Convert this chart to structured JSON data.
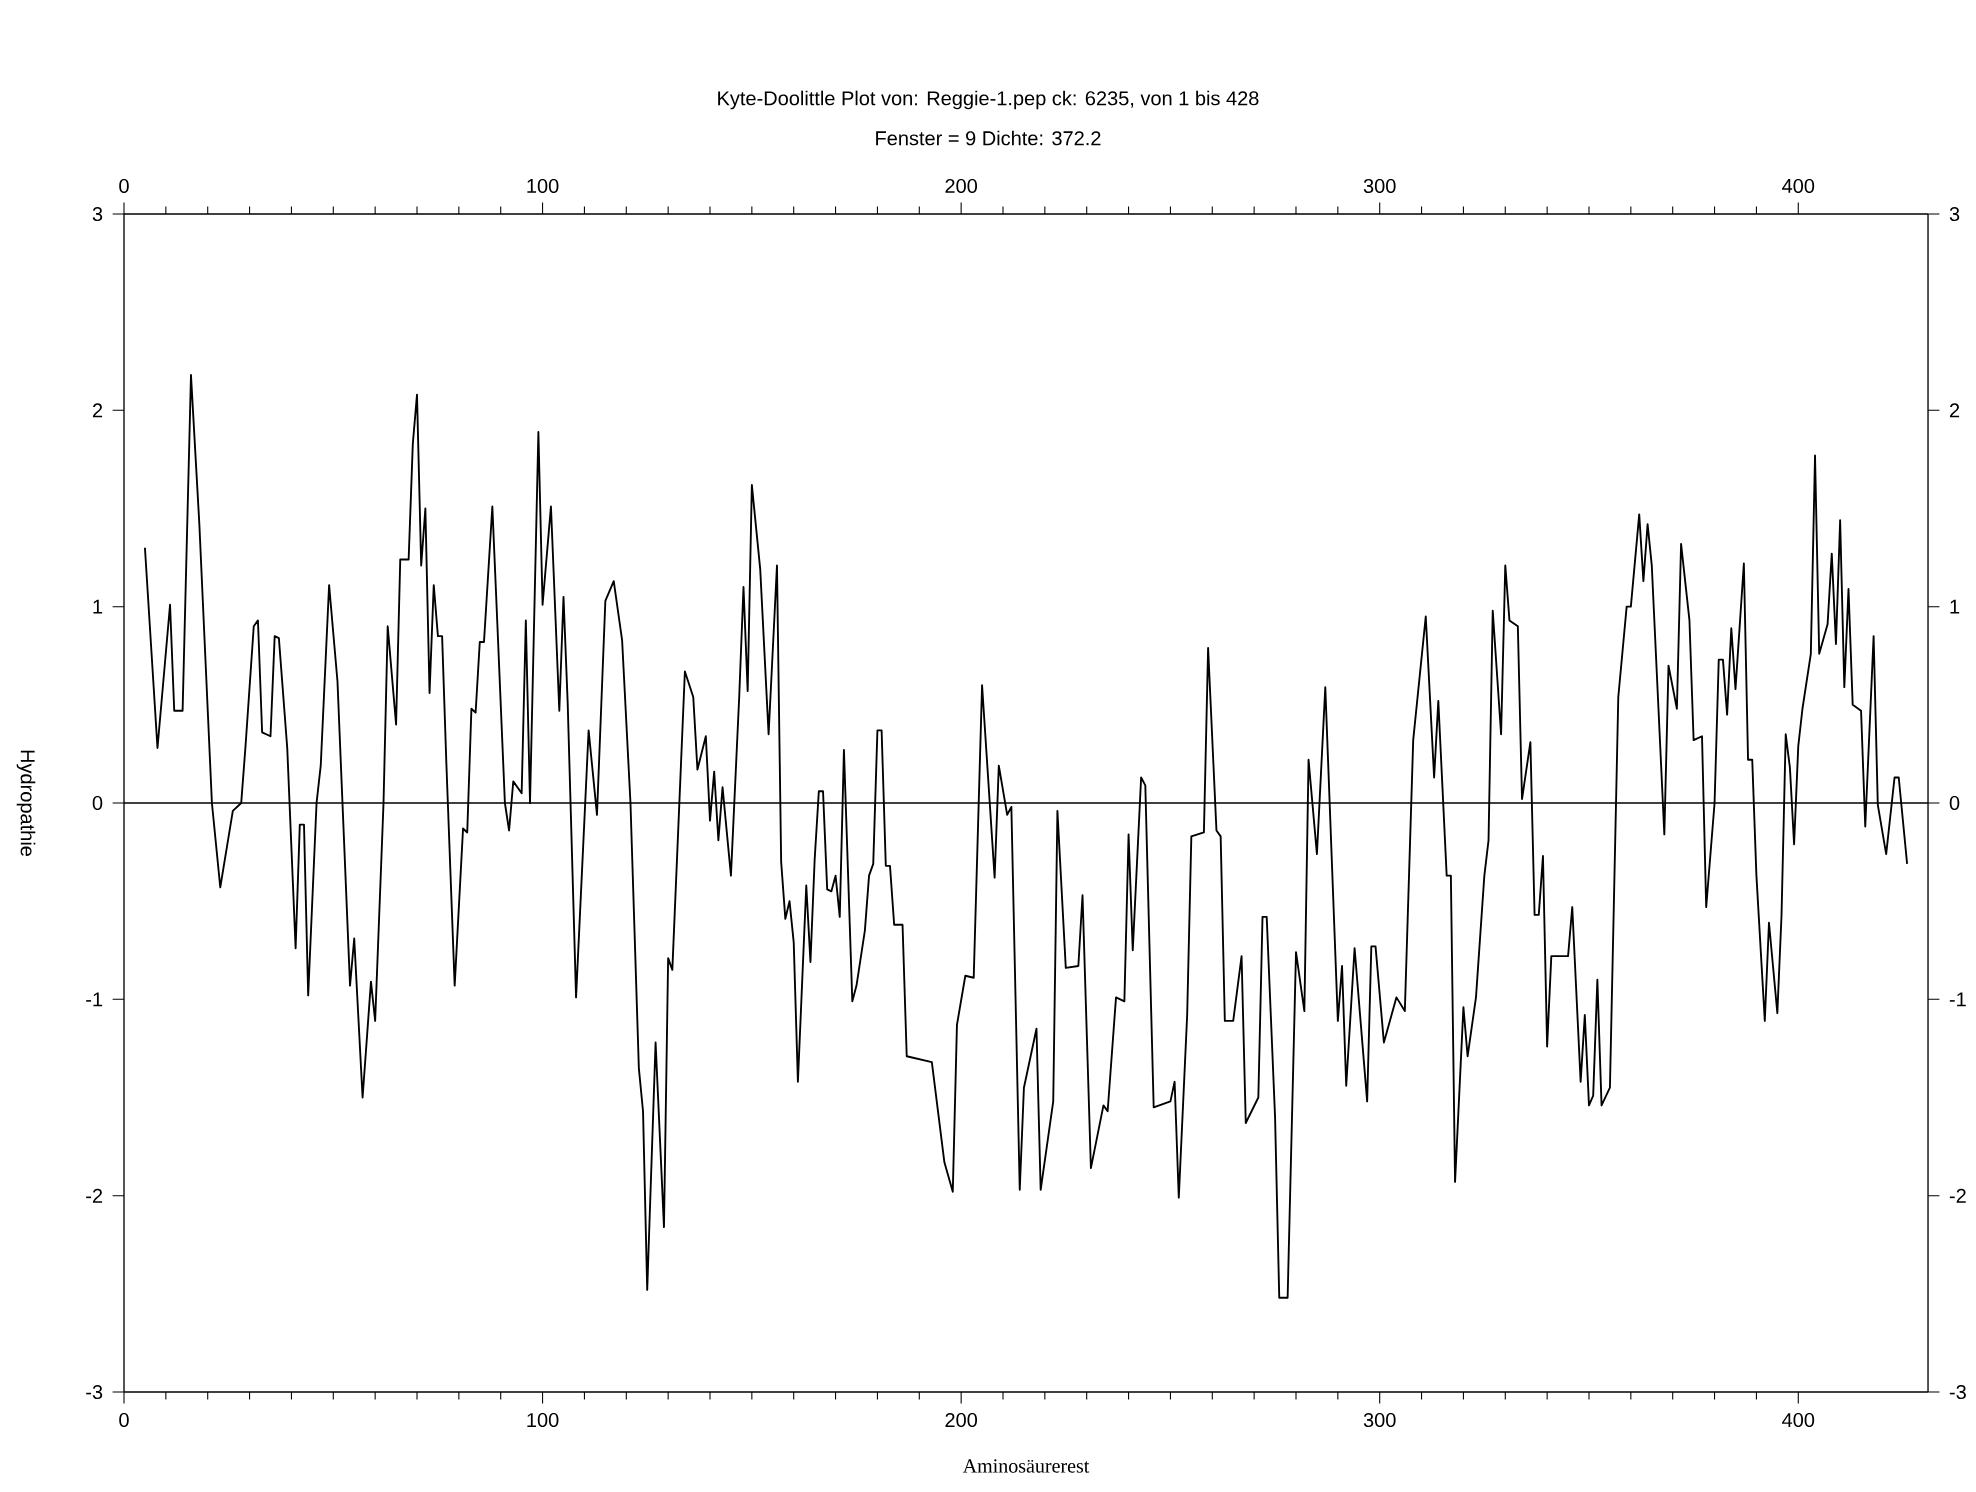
{
  "chart_data": {
    "type": "line",
    "title": "Kyte-Doolittle Plot von: Reggie-1.pep ck: 6235, von 1 bis 428",
    "subtitle": "Fenster = 9    Dichte: 372.2",
    "xlabel": "Aminosäurerest",
    "ylabel": "Hydropathie",
    "xlim": [
      0,
      431
    ],
    "xticks": [
      0,
      100,
      200,
      300,
      400
    ],
    "x2lim": [
      0,
      431
    ],
    "x2ticks": [
      0,
      100,
      200,
      300,
      400
    ],
    "ylim": [
      -3,
      3
    ],
    "yticks": [
      -3,
      -2,
      -1,
      0,
      1,
      2,
      3
    ],
    "y2lim": [
      -3,
      3
    ],
    "y2ticks": [
      -3,
      -2,
      -1,
      0,
      1,
      2,
      3
    ],
    "ref_lines": [
      {
        "axis": "y",
        "value": 0,
        "color": "#000000"
      }
    ],
    "series": [
      {
        "color": "#000000",
        "x": [
          5,
          8,
          11,
          12,
          14,
          16,
          18,
          21,
          23,
          26,
          28,
          29,
          31,
          32,
          33,
          35,
          36,
          37,
          39,
          41,
          42,
          43,
          44,
          46,
          47,
          49,
          51,
          52,
          54,
          55,
          57,
          59,
          60,
          62,
          63,
          65,
          66,
          68,
          69,
          70,
          71,
          72,
          73,
          74,
          75,
          76,
          77,
          79,
          81,
          82,
          83,
          84,
          85,
          86,
          88,
          89,
          91,
          92,
          93,
          95,
          96,
          97,
          99,
          100,
          102,
          104,
          105,
          106,
          108,
          111,
          113,
          115,
          117,
          119,
          121,
          123,
          124,
          125,
          127,
          129,
          130,
          131,
          134,
          136,
          137,
          139,
          140,
          141,
          142,
          143,
          145,
          147,
          148,
          149,
          150,
          152,
          154,
          156,
          157,
          158,
          159,
          160,
          161,
          163,
          164,
          165,
          166,
          167,
          168,
          169,
          170,
          171,
          172,
          174,
          175,
          177,
          178,
          179,
          180,
          181,
          182,
          183,
          184,
          186,
          187,
          193,
          196,
          198,
          199,
          201,
          203,
          205,
          208,
          209,
          211,
          212,
          214,
          215,
          218,
          219,
          222,
          223,
          225,
          228,
          229,
          231,
          234,
          235,
          237,
          239,
          240,
          241,
          243,
          244,
          246,
          250,
          251,
          252,
          254,
          255,
          258,
          259,
          261,
          262,
          263,
          265,
          267,
          268,
          271,
          272,
          273,
          275,
          276,
          278,
          280,
          282,
          283,
          285,
          287,
          290,
          291,
          292,
          294,
          297,
          298,
          299,
          301,
          304,
          306,
          308,
          311,
          313,
          314,
          316,
          317,
          318,
          320,
          321,
          323,
          325,
          326,
          327,
          329,
          330,
          331,
          333,
          334,
          336,
          337,
          338,
          339,
          340,
          341,
          345,
          346,
          348,
          349,
          350,
          351,
          352,
          353,
          355,
          357,
          359,
          360,
          362,
          363,
          364,
          365,
          368,
          369,
          371,
          372,
          374,
          375,
          377,
          378,
          380,
          381,
          382,
          383,
          384,
          385,
          387,
          388,
          389,
          390,
          392,
          393,
          395,
          396,
          397,
          398,
          399,
          400,
          401,
          403,
          404,
          405,
          407,
          408,
          409,
          410,
          411,
          412,
          413,
          415,
          416,
          418,
          419,
          421,
          423,
          424,
          426
        ],
        "values": [
          1.3,
          0.28,
          1.01,
          0.47,
          0.47,
          2.18,
          1.42,
          0.0,
          -0.43,
          -0.04,
          0.0,
          0.28,
          0.9,
          0.93,
          0.36,
          0.34,
          0.85,
          0.84,
          0.28,
          -0.74,
          -0.11,
          -0.11,
          -0.98,
          0.0,
          0.19,
          1.11,
          0.62,
          0.1,
          -0.93,
          -0.69,
          -1.5,
          -0.91,
          -1.11,
          0.0,
          0.9,
          0.4,
          1.24,
          1.24,
          1.83,
          2.08,
          1.21,
          1.5,
          0.56,
          1.11,
          0.85,
          0.85,
          0.21,
          -0.93,
          -0.13,
          -0.15,
          0.48,
          0.46,
          0.82,
          0.82,
          1.51,
          1.01,
          0.0,
          -0.14,
          0.11,
          0.05,
          0.93,
          0.0,
          1.89,
          1.01,
          1.51,
          0.47,
          1.05,
          0.51,
          -0.99,
          0.37,
          -0.06,
          1.03,
          1.13,
          0.83,
          0.0,
          -1.35,
          -1.57,
          -2.48,
          -1.22,
          -2.16,
          -0.79,
          -0.85,
          0.67,
          0.54,
          0.17,
          0.34,
          -0.09,
          0.16,
          -0.19,
          0.08,
          -0.37,
          0.55,
          1.1,
          0.57,
          1.62,
          1.19,
          0.35,
          1.21,
          -0.3,
          -0.59,
          -0.5,
          -0.71,
          -1.42,
          -0.42,
          -0.81,
          -0.29,
          0.06,
          0.06,
          -0.44,
          -0.45,
          -0.37,
          -0.58,
          0.27,
          -1.01,
          -0.93,
          -0.65,
          -0.37,
          -0.31,
          0.37,
          0.37,
          -0.32,
          -0.32,
          -0.62,
          -0.62,
          -1.29,
          -1.32,
          -1.83,
          -1.98,
          -1.13,
          -0.88,
          -0.89,
          0.6,
          -0.38,
          0.19,
          -0.06,
          -0.02,
          -1.97,
          -1.45,
          -1.15,
          -1.97,
          -1.52,
          -0.04,
          -0.84,
          -0.83,
          -0.47,
          -1.86,
          -1.54,
          -1.57,
          -0.99,
          -1.01,
          -0.16,
          -0.75,
          0.13,
          0.09,
          -1.55,
          -1.52,
          -1.42,
          -2.01,
          -1.08,
          -0.17,
          -0.15,
          0.79,
          -0.14,
          -0.17,
          -1.11,
          -1.11,
          -0.78,
          -1.63,
          -1.5,
          -0.58,
          -0.58,
          -1.6,
          -2.52,
          -2.52,
          -0.76,
          -1.06,
          0.22,
          -0.26,
          0.59,
          -1.11,
          -0.83,
          -1.44,
          -0.74,
          -1.52,
          -0.73,
          -0.73,
          -1.22,
          -0.99,
          -1.06,
          0.32,
          0.95,
          0.13,
          0.52,
          -0.37,
          -0.37,
          -1.93,
          -1.04,
          -1.29,
          -0.99,
          -0.37,
          -0.19,
          0.98,
          0.35,
          1.21,
          0.93,
          0.9,
          0.02,
          0.31,
          -0.57,
          -0.57,
          -0.27,
          -1.24,
          -0.78,
          -0.78,
          -0.53,
          -1.42,
          -1.08,
          -1.54,
          -1.49,
          -0.9,
          -1.54,
          -1.45,
          0.54,
          1.0,
          1.0,
          1.47,
          1.13,
          1.42,
          1.21,
          -0.16,
          0.7,
          0.48,
          1.32,
          0.93,
          0.32,
          0.34,
          -0.53,
          0.0,
          0.73,
          0.73,
          0.45,
          0.89,
          0.58,
          1.22,
          0.22,
          0.22,
          -0.37,
          -1.11,
          -0.61,
          -1.07,
          -0.57,
          0.35,
          0.18,
          -0.21,
          0.29,
          0.48,
          0.76,
          1.77,
          0.76,
          0.91,
          1.27,
          0.81,
          1.44,
          0.59,
          1.09,
          0.5,
          0.47,
          -0.12,
          0.85,
          -0.01,
          -0.26,
          0.13,
          0.13,
          -0.31
        ]
      }
    ]
  }
}
